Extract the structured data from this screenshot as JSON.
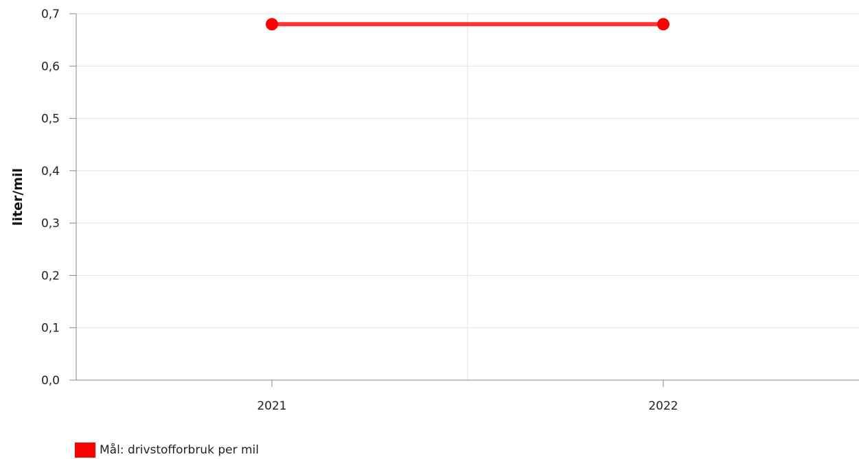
{
  "chart_data": {
    "type": "line",
    "categories": [
      "2021",
      "2022"
    ],
    "series": [
      {
        "name": "Mål: drivstofforbruk per mil",
        "values": [
          0.68,
          0.68
        ],
        "color": "#ff0000"
      }
    ],
    "title": "",
    "xlabel": "",
    "ylabel": "liter/mil",
    "ylim": [
      0,
      0.7
    ],
    "y_ticks": [
      "0,0",
      "0,1",
      "0,2",
      "0,3",
      "0,4",
      "0,5",
      "0,6",
      "0,7"
    ],
    "grid": true,
    "legend_position": "bottom-left"
  }
}
